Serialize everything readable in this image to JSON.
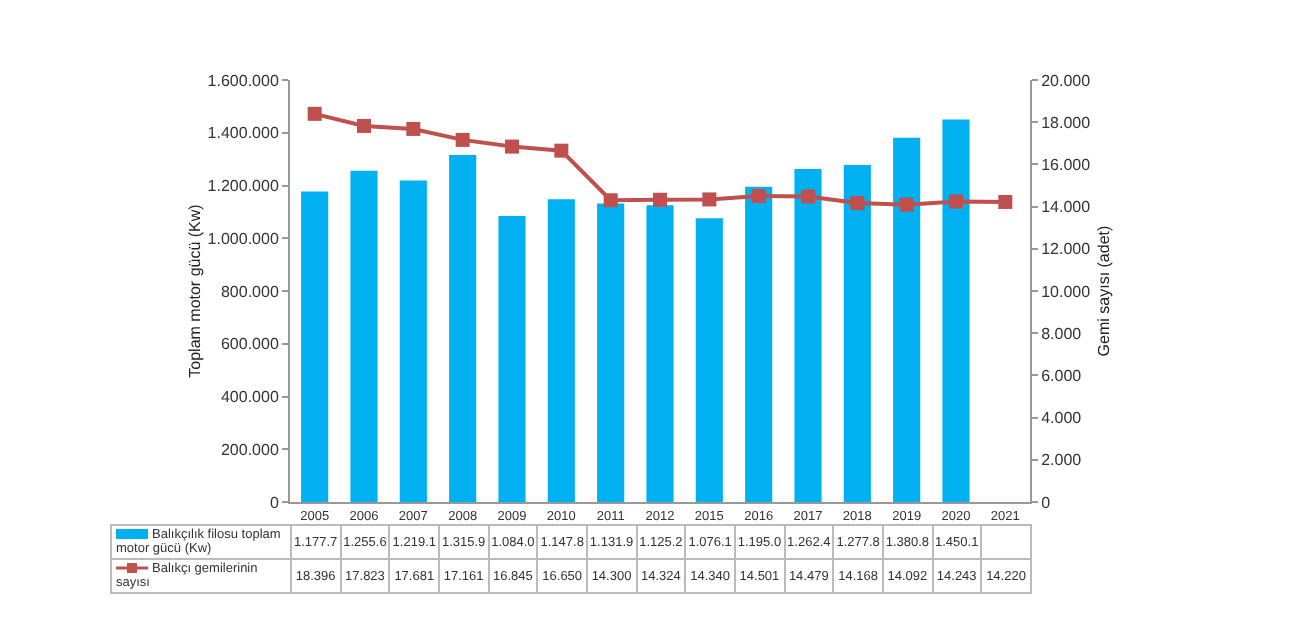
{
  "chart_data": {
    "type": "bar",
    "categories": [
      "2005",
      "2006",
      "2007",
      "2008",
      "2009",
      "2010",
      "2011",
      "2012",
      "2015",
      "2016",
      "2017",
      "2018",
      "2019",
      "2020",
      "2021"
    ],
    "series": [
      {
        "name": "Balıkçılık filosu toplam motor gücü (Kw)",
        "color": "#00b0f0",
        "values": [
          1177700,
          1255600,
          1219100,
          1315900,
          1084000,
          1147800,
          1131900,
          1125200,
          1076100,
          1195000,
          1262400,
          1277800,
          1380800,
          1450100,
          null
        ],
        "value_labels": [
          "1.177.7",
          "1.255.6",
          "1.219.1",
          "1.315.9",
          "1.084.0",
          "1.147.8",
          "1.131.9",
          "1.125.2",
          "1.076.1",
          "1.195.0",
          "1.262.4",
          "1.277.8",
          "1.380.8",
          "1.450.1",
          null
        ]
      },
      {
        "name": "Balıkçı gemilerinin sayısı",
        "type": "line",
        "axis": "y2",
        "color": "#c0504d",
        "marker": "square",
        "values": [
          18396,
          17823,
          17681,
          17161,
          16845,
          16650,
          14300,
          14324,
          14340,
          14501,
          14479,
          14168,
          14092,
          14243,
          14220
        ],
        "value_labels": [
          "18.396",
          "17.823",
          "17.681",
          "17.161",
          "16.845",
          "16.650",
          "14.300",
          "14.324",
          "14.340",
          "14.501",
          "14.479",
          "14.168",
          "14.092",
          "14.243",
          "14.220"
        ]
      }
    ],
    "ylabel": "Toplam motor gücü (Kw)",
    "y2label": "Gemi sayısı (adet)",
    "ylim": [
      0,
      1600000
    ],
    "yticks": [
      0,
      {
        "value": 200000,
        "label": "200.000"
      },
      {
        "value": 400000,
        "label": "400.000"
      },
      {
        "value": 600000,
        "label": "600.000"
      },
      {
        "value": 800000,
        "label": "800.000"
      },
      {
        "value": 1000000,
        "label": "1.000.000"
      },
      {
        "value": 1200000,
        "label": "1.200.000"
      },
      {
        "value": 1400000,
        "label": "1.400.000"
      },
      {
        "value": 1600000,
        "label": "1.600.000"
      }
    ],
    "y2lim": [
      0,
      20000
    ],
    "y2ticks": [
      0,
      {
        "value": 2000,
        "label": "2.000"
      },
      {
        "value": 4000,
        "label": "4.000"
      },
      {
        "value": 6000,
        "label": "6.000"
      },
      {
        "value": 8000,
        "label": "8.000"
      },
      {
        "value": 10000,
        "label": "10.000"
      },
      {
        "value": 12000,
        "label": "12.000"
      },
      {
        "value": 14000,
        "label": "14.000"
      },
      {
        "value": 16000,
        "label": "16.000"
      },
      {
        "value": 18000,
        "label": "18.000"
      },
      {
        "value": 20000,
        "label": "20.000"
      }
    ],
    "grid": false,
    "legend": "bottom"
  }
}
